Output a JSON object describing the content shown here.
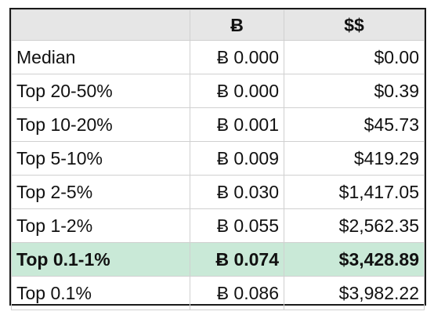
{
  "table": {
    "headers": [
      "",
      "Ƀ",
      "$$"
    ],
    "rows": [
      {
        "label": "Median",
        "btc": "Ƀ 0.000",
        "usd": "$0.00",
        "highlight": false
      },
      {
        "label": "Top 20-50%",
        "btc": "Ƀ 0.000",
        "usd": "$0.39",
        "highlight": false
      },
      {
        "label": "Top 10-20%",
        "btc": "Ƀ 0.001",
        "usd": "$45.73",
        "highlight": false
      },
      {
        "label": "Top 5-10%",
        "btc": "Ƀ 0.009",
        "usd": "$419.29",
        "highlight": false
      },
      {
        "label": "Top 2-5%",
        "btc": "Ƀ 0.030",
        "usd": "$1,417.05",
        "highlight": false
      },
      {
        "label": "Top 1-2%",
        "btc": "Ƀ 0.055",
        "usd": "$2,562.35",
        "highlight": false
      },
      {
        "label": "Top 0.1-1%",
        "btc": "Ƀ 0.074",
        "usd": "$3,428.89",
        "highlight": true
      },
      {
        "label": "Top 0.1%",
        "btc": "Ƀ 0.086",
        "usd": "$3,982.22",
        "highlight": false
      }
    ],
    "colors": {
      "header_bg": "#e6e6e6",
      "highlight_bg": "#c9e9d7",
      "border": "#1a1a1a",
      "grid": "#d0d0d0"
    }
  }
}
